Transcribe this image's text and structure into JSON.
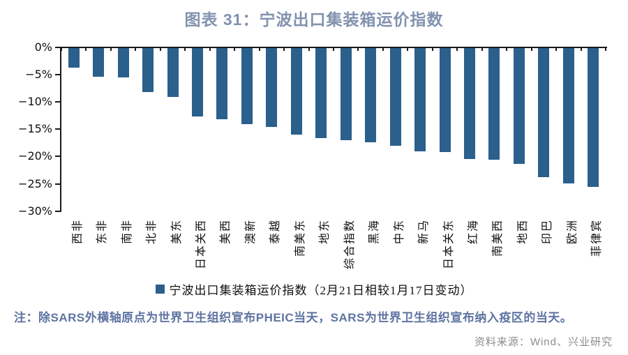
{
  "title": "图表 31：宁波出口集装箱运价指数",
  "note": "注：除SARS外横轴原点为世界卫生组织宣布PHEIC当天，SARS为世界卫生组织宣布纳入疫区的当天。",
  "source": "资料来源：Wind、兴业研究",
  "colors": {
    "bar": "#2B5F8C",
    "title": "#8292AF",
    "note": "#5F74A2",
    "source": "#8C8C8C",
    "axis": "#1A1A1A"
  },
  "chart_data": {
    "type": "bar",
    "title": "图表 31：宁波出口集装箱运价指数",
    "legend": "宁波出口集装箱运价指数（2月21日相较1月17日变动）",
    "legend_position": "bottom",
    "categories": [
      "西非",
      "东非",
      "南非",
      "北非",
      "美东",
      "日本关西",
      "美西",
      "澳新",
      "泰越",
      "南美东",
      "地东",
      "综合指数",
      "黑海",
      "中东",
      "新马",
      "日本关东",
      "红海",
      "南美西",
      "地西",
      "印巴",
      "欧洲",
      "菲律宾"
    ],
    "values": [
      -3.6,
      -5.3,
      -5.4,
      -8.0,
      -8.9,
      -12.5,
      -13.1,
      -13.9,
      -14.4,
      -15.9,
      -16.5,
      -16.9,
      -17.2,
      -17.9,
      -18.9,
      -19.0,
      -20.3,
      -20.4,
      -21.2,
      -23.7,
      -24.8,
      -25.4
    ],
    "unit": "%",
    "ylim": [
      -30,
      0
    ],
    "y_ticks": [
      "0%",
      "−5%",
      "−10%",
      "−15%",
      "−20%",
      "−25%",
      "−30%"
    ],
    "grid": false,
    "xlabel": "",
    "ylabel": ""
  }
}
